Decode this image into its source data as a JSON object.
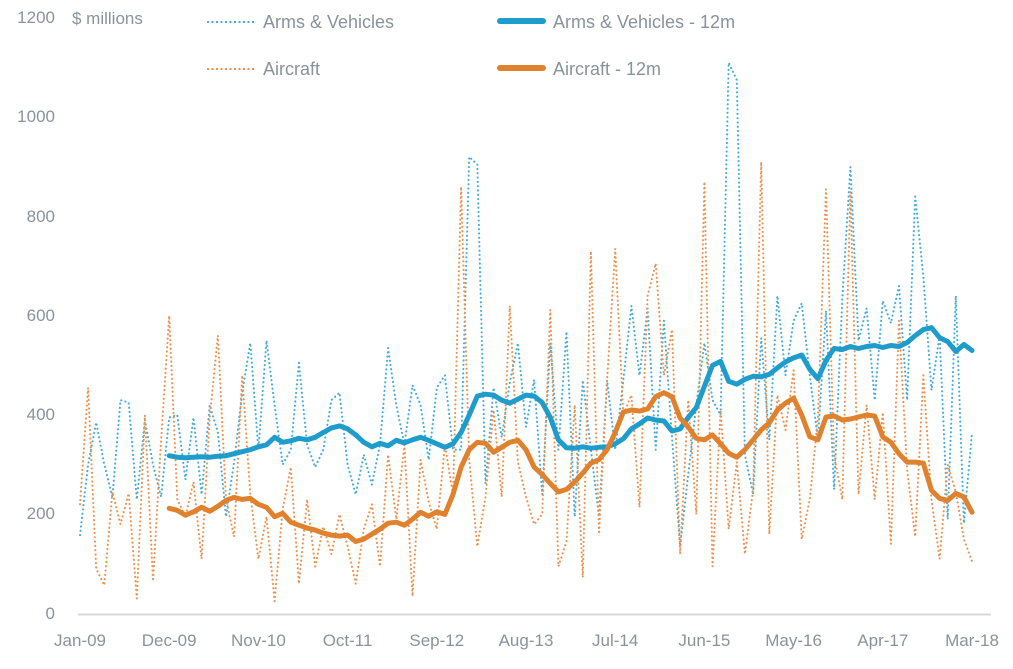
{
  "colors": {
    "arms_dotted": "#46ACD8",
    "aircraft_dotted": "#EC9251",
    "arms_solid": "#1E9CCB",
    "aircraft_solid": "#E0812E",
    "axis_text": "#8A939B",
    "axis_line": "#D8D8D8",
    "background": "#FFFFFF"
  },
  "chart_data": {
    "type": "line",
    "title": "",
    "unit_label": "$ millions",
    "frequency": "monthly",
    "x_start": "Jan-09",
    "x_end": "Mar-18",
    "x_tick_labels": [
      "Jan-09",
      "Dec-09",
      "Nov-10",
      "Oct-11",
      "Sep-12",
      "Aug-13",
      "Jul-14",
      "Jun-15",
      "May-16",
      "Apr-17",
      "Mar-18"
    ],
    "y_tick_labels": [
      1200,
      1000,
      800,
      600,
      400,
      200,
      0
    ],
    "ylim": [
      0,
      1200
    ],
    "grid": false,
    "legend_position": "top",
    "series": [
      {
        "name": "Arms & Vehicles",
        "style": "dotted",
        "color": "#46ACD8",
        "start_month": "Jan-09",
        "values": [
          158,
          300,
          385,
          300,
          235,
          430,
          425,
          230,
          390,
          300,
          235,
          395,
          400,
          270,
          395,
          240,
          420,
          365,
          195,
          305,
          445,
          545,
          330,
          550,
          420,
          300,
          330,
          505,
          340,
          295,
          330,
          430,
          445,
          300,
          240,
          320,
          260,
          340,
          535,
          420,
          340,
          460,
          420,
          310,
          455,
          480,
          330,
          330,
          920,
          905,
          262,
          455,
          355,
          465,
          545,
          376,
          471,
          240,
          545,
          330,
          568,
          195,
          470,
          330,
          195,
          470,
          330,
          470,
          620,
          480,
          615,
          330,
          590,
          355,
          135,
          280,
          420,
          545,
          430,
          400,
          1110,
          1075,
          320,
          240,
          555,
          350,
          640,
          480,
          590,
          625,
          480,
          350,
          610,
          250,
          635,
          900,
          550,
          615,
          430,
          630,
          585,
          660,
          430,
          840,
          680,
          450,
          560,
          190,
          640,
          182,
          364
        ]
      },
      {
        "name": "Aircraft",
        "style": "dotted",
        "color": "#EC9251",
        "start_month": "Jan-09",
        "values": [
          220,
          455,
          90,
          57,
          245,
          180,
          242,
          30,
          400,
          65,
          350,
          600,
          230,
          195,
          265,
          110,
          395,
          560,
          230,
          155,
          480,
          240,
          110,
          195,
          25,
          210,
          295,
          60,
          230,
          95,
          175,
          120,
          200,
          135,
          60,
          170,
          220,
          95,
          320,
          190,
          340,
          35,
          310,
          225,
          170,
          340,
          240,
          860,
          310,
          135,
          235,
          410,
          235,
          620,
          305,
          235,
          180,
          200,
          612,
          95,
          145,
          420,
          73,
          730,
          160,
          470,
          735,
          400,
          440,
          214,
          640,
          705,
          480,
          572,
          120,
          430,
          200,
          870,
          95,
          410,
          170,
          305,
          120,
          250,
          910,
          160,
          440,
          370,
          490,
          150,
          230,
          395,
          855,
          320,
          230,
          850,
          240,
          420,
          230,
          405,
          140,
          590,
          290,
          155,
          480,
          230,
          110,
          300,
          245,
          150,
          105
        ]
      },
      {
        "name": "Arms & Vehicles - 12m",
        "style": "solid",
        "color": "#1E9CCB",
        "start_month": "Dec-09",
        "values": [
          318,
          315,
          314,
          315,
          316,
          315,
          317,
          318,
          322,
          326,
          330,
          336,
          340,
          355,
          345,
          348,
          353,
          350,
          355,
          365,
          374,
          378,
          372,
          360,
          345,
          336,
          343,
          338,
          349,
          344,
          350,
          355,
          349,
          342,
          335,
          342,
          365,
          400,
          438,
          442,
          440,
          430,
          424,
          432,
          440,
          438,
          425,
          395,
          350,
          334,
          333,
          336,
          333,
          335,
          336,
          342,
          352,
          372,
          382,
          394,
          390,
          388,
          368,
          372,
          395,
          415,
          458,
          500,
          508,
          468,
          462,
          472,
          478,
          477,
          482,
          495,
          507,
          515,
          521,
          492,
          473,
          510,
          534,
          532,
          538,
          534,
          538,
          540,
          536,
          540,
          538,
          546,
          560,
          572,
          576,
          556,
          548,
          528,
          542,
          530
        ]
      },
      {
        "name": "Aircraft - 12m",
        "style": "solid",
        "color": "#E0812E",
        "start_month": "Dec-09",
        "values": [
          212,
          208,
          198,
          205,
          214,
          206,
          216,
          228,
          234,
          230,
          232,
          220,
          214,
          195,
          202,
          184,
          178,
          172,
          168,
          162,
          158,
          156,
          158,
          145,
          150,
          160,
          170,
          182,
          184,
          178,
          190,
          204,
          196,
          205,
          200,
          240,
          295,
          330,
          345,
          343,
          325,
          335,
          345,
          349,
          330,
          295,
          280,
          262,
          245,
          250,
          265,
          283,
          303,
          310,
          330,
          365,
          406,
          410,
          408,
          412,
          437,
          445,
          437,
          394,
          376,
          353,
          350,
          360,
          342,
          323,
          315,
          330,
          350,
          370,
          384,
          410,
          424,
          434,
          400,
          356,
          350,
          396,
          398,
          390,
          392,
          396,
          400,
          398,
          356,
          345,
          322,
          305,
          305,
          303,
          248,
          232,
          228,
          242,
          235,
          204
        ]
      }
    ]
  },
  "layout_values": {
    "note_visible": false
  }
}
